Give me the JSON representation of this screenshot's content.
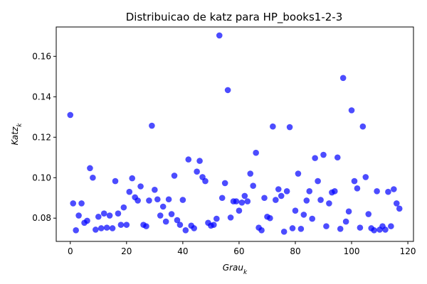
{
  "chart_data": {
    "type": "scatter",
    "title": "Distribuicao de katz para HP_books1-2-3",
    "xlabel": "Grau",
    "xlabel_sub": "k",
    "ylabel": "Katz",
    "ylabel_sub": "k",
    "xlim": [
      -5,
      122
    ],
    "ylim": [
      0.0685,
      0.1745
    ],
    "xticks": [
      0,
      20,
      40,
      60,
      80,
      100,
      120
    ],
    "yticks": [
      0.08,
      0.1,
      0.12,
      0.14,
      0.16
    ],
    "ytick_labels": [
      "0.08",
      "0.10",
      "0.12",
      "0.14",
      "0.16"
    ],
    "grid": false,
    "marker_color": "#0000ff",
    "marker_alpha": 0.7,
    "series": [
      {
        "x": [
          0,
          1,
          2,
          3,
          4,
          5,
          6,
          7,
          8,
          9,
          10,
          11,
          12,
          13,
          14,
          15,
          16,
          17,
          18,
          19,
          20,
          21,
          22,
          23,
          24,
          25,
          26,
          27,
          28,
          29,
          30,
          31,
          32,
          33,
          34,
          35,
          36,
          37,
          38,
          39,
          40,
          41,
          42,
          43,
          44,
          45,
          46,
          47,
          48,
          49,
          50,
          51,
          52,
          53,
          54,
          55,
          56,
          57,
          58,
          59,
          60,
          61,
          62,
          63,
          64,
          65,
          66,
          67,
          68,
          69,
          70,
          71,
          72,
          73,
          74,
          75,
          76,
          77,
          78,
          79,
          80,
          81,
          82,
          83,
          84,
          85,
          86,
          87,
          88,
          89,
          90,
          91,
          92,
          93,
          94,
          95,
          96,
          97,
          98,
          99,
          100,
          101,
          102,
          103,
          104,
          105,
          106,
          107,
          108,
          109,
          110,
          111,
          112,
          113,
          114,
          115,
          116,
          117
        ],
        "y": [
          0.131,
          0.0873,
          0.074,
          0.0813,
          0.0873,
          0.0777,
          0.0787,
          0.1047,
          0.1,
          0.0743,
          0.0807,
          0.075,
          0.0823,
          0.0753,
          0.0813,
          0.075,
          0.0983,
          0.0823,
          0.0767,
          0.0853,
          0.0767,
          0.093,
          0.0997,
          0.0903,
          0.0887,
          0.0957,
          0.0767,
          0.076,
          0.0887,
          0.1257,
          0.094,
          0.0893,
          0.0813,
          0.0857,
          0.0783,
          0.0893,
          0.082,
          0.101,
          0.079,
          0.0767,
          0.089,
          0.074,
          0.109,
          0.0763,
          0.075,
          0.103,
          0.1083,
          0.1003,
          0.0983,
          0.0777,
          0.0763,
          0.0767,
          0.0797,
          0.1703,
          0.09,
          0.0973,
          0.1433,
          0.0803,
          0.0883,
          0.0883,
          0.0837,
          0.0877,
          0.091,
          0.0883,
          0.102,
          0.096,
          0.1123,
          0.0753,
          0.074,
          0.09,
          0.0807,
          0.08,
          0.1253,
          0.089,
          0.0943,
          0.091,
          0.0733,
          0.0933,
          0.125,
          0.075,
          0.0837,
          0.102,
          0.0747,
          0.0817,
          0.0887,
          0.0933,
          0.0797,
          0.1097,
          0.0983,
          0.089,
          0.1113,
          0.076,
          0.0873,
          0.0927,
          0.0933,
          0.11,
          0.0747,
          0.1493,
          0.0783,
          0.0833,
          0.1333,
          0.0983,
          0.0947,
          0.0753,
          0.1253,
          0.1003,
          0.082,
          0.075,
          0.074,
          0.0933,
          0.0743,
          0.076,
          0.0743,
          0.093,
          0.076,
          0.0943,
          0.0873,
          0.0847
        ]
      }
    ]
  }
}
